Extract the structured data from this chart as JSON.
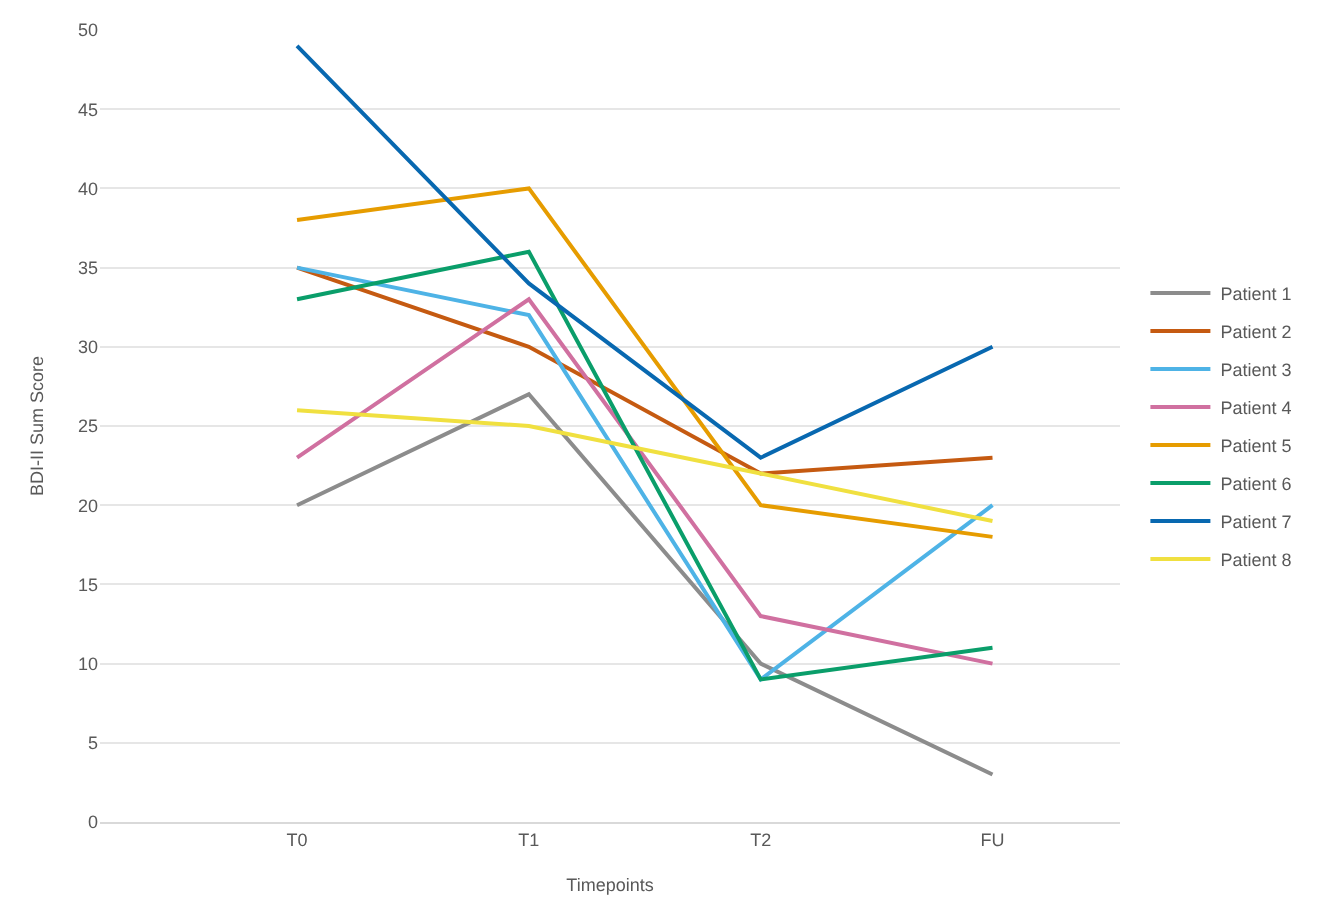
{
  "chart_data": {
    "type": "line",
    "xlabel": "Timepoints",
    "ylabel": "BDI-II Sum Score",
    "categories": [
      "T0",
      "T1",
      "T2",
      "FU"
    ],
    "series": [
      {
        "name": "Patient 1",
        "color": "#8c8c8c",
        "values": [
          20,
          27,
          10,
          3
        ]
      },
      {
        "name": "Patient 2",
        "color": "#c55a11",
        "values": [
          35,
          30,
          22,
          23
        ]
      },
      {
        "name": "Patient 3",
        "color": "#4eb3e6",
        "values": [
          35,
          32,
          9,
          20
        ]
      },
      {
        "name": "Patient 4",
        "color": "#d070a0",
        "values": [
          23,
          33,
          13,
          10
        ]
      },
      {
        "name": "Patient 5",
        "color": "#e69c00",
        "values": [
          38,
          40,
          20,
          18
        ]
      },
      {
        "name": "Patient 6",
        "color": "#0a9e6a",
        "values": [
          33,
          36,
          9,
          11
        ]
      },
      {
        "name": "Patient 7",
        "color": "#0868b0",
        "values": [
          49,
          34,
          23,
          30
        ]
      },
      {
        "name": "Patient 8",
        "color": "#f0e040",
        "values": [
          26,
          25,
          22,
          19
        ]
      }
    ],
    "ylim": [
      0,
      50
    ],
    "yticks": [
      0,
      5,
      10,
      15,
      20,
      25,
      30,
      35,
      40,
      45,
      50
    ],
    "grid": "y",
    "legend": "right",
    "marker": "none",
    "line_style": "solid"
  }
}
